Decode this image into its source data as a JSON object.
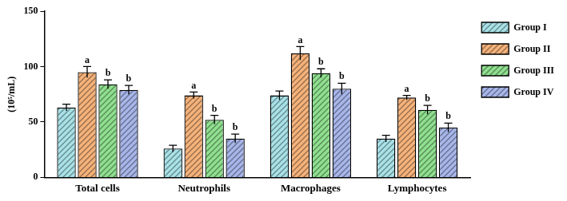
{
  "chart_data": {
    "type": "bar",
    "ylabel": "(10⁵/mL)",
    "categories": [
      "Total cells",
      "Neutrophils",
      "Macrophages",
      "Lymphocytes"
    ],
    "series": [
      {
        "name": "Group I",
        "color": "#a8e2e8",
        "values": [
          63,
          26,
          74,
          35
        ],
        "error": [
          3,
          3,
          4,
          3
        ]
      },
      {
        "name": "Group II",
        "color": "#f5b27a",
        "values": [
          95,
          74,
          112,
          72
        ],
        "error": [
          5,
          3,
          6,
          2
        ],
        "significance": [
          "a",
          "a",
          "a",
          "a"
        ]
      },
      {
        "name": "Group III",
        "color": "#8fe08f",
        "values": [
          84,
          52,
          94,
          61
        ],
        "error": [
          4,
          4,
          4,
          4
        ],
        "significance": [
          "b",
          "b",
          "b",
          "b"
        ]
      },
      {
        "name": "Group IV",
        "color": "#a7b6ea",
        "values": [
          79,
          35,
          80,
          45
        ],
        "error": [
          4,
          4,
          5,
          4
        ],
        "significance": [
          "b",
          "b",
          "b",
          "b"
        ]
      }
    ],
    "ylim": [
      0,
      150
    ],
    "yticks": [
      0,
      50,
      100,
      150
    ],
    "grid": false,
    "legend": "right"
  }
}
